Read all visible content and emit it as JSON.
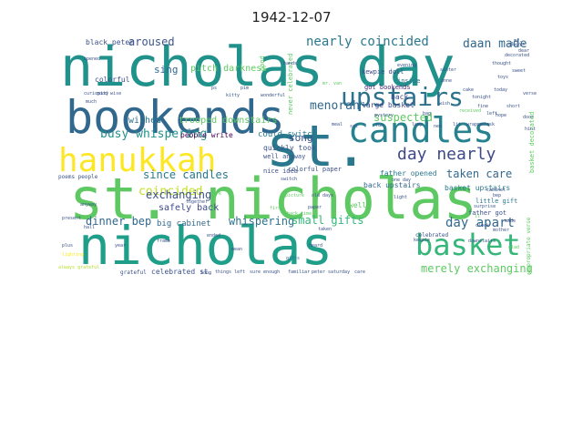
{
  "title": "1942-12-07",
  "colors": {
    "background": "#ffffff",
    "palette": [
      "#440154",
      "#3b528b",
      "#21918c",
      "#5ec962",
      "#fde725"
    ]
  },
  "words": [
    {
      "text": "nicholas day",
      "color": "#21918c"
    },
    {
      "text": "bookends",
      "color": "#31688e"
    },
    {
      "text": "st.",
      "color": "#2a788e"
    },
    {
      "text": "hanukkah",
      "color": "#fde725"
    },
    {
      "text": "candles",
      "color": "#26828e"
    },
    {
      "text": "upstairs",
      "color": "#2c728e"
    },
    {
      "text": "st. nicholas",
      "color": "#5ec962"
    },
    {
      "text": "nicholas",
      "color": "#1f9e89"
    },
    {
      "text": "basket",
      "color": "#35b779"
    },
    {
      "text": "nearly coincided",
      "color": "#2a788e"
    },
    {
      "text": "day nearly",
      "color": "#3e4989"
    },
    {
      "text": "daan made",
      "color": "#31688e"
    },
    {
      "text": "aroused",
      "color": "#3b528b"
    },
    {
      "text": "menorah",
      "color": "#31688e"
    },
    {
      "text": "suspected",
      "color": "#5ec962"
    },
    {
      "text": "busy whispering",
      "color": "#21918c"
    },
    {
      "text": "sing",
      "color": "#31688e"
    },
    {
      "text": "song",
      "color": "#3b528b"
    },
    {
      "text": "since candles",
      "color": "#2a788e"
    },
    {
      "text": "taken care",
      "color": "#31688e"
    },
    {
      "text": "coincided",
      "color": "#c2df23"
    },
    {
      "text": "exchanging",
      "color": "#3b528b"
    },
    {
      "text": "dinner bep",
      "color": "#31688e"
    },
    {
      "text": "whispering",
      "color": "#2c728e"
    },
    {
      "text": "small gifts",
      "color": "#35b779"
    },
    {
      "text": "day apart",
      "color": "#31688e"
    },
    {
      "text": "merely exchanging",
      "color": "#5ec962"
    },
    {
      "text": "pitch darkness",
      "color": "#5ec962"
    },
    {
      "text": "trooped downstairs",
      "color": "#5ec962"
    },
    {
      "text": "wished",
      "color": "#2c728e"
    },
    {
      "text": "colorful",
      "color": "#3b528b"
    },
    {
      "text": "black peter",
      "color": "#3b528b"
    },
    {
      "text": "kewpie doll",
      "color": "#3e4989"
    },
    {
      "text": "got bookends",
      "color": "#482878"
    },
    {
      "text": "large basket",
      "color": "#3e4989"
    },
    {
      "text": "could switch",
      "color": "#2a788e"
    },
    {
      "text": "quickly took",
      "color": "#3b528b"
    },
    {
      "text": "well anyway",
      "color": "#3b528b"
    },
    {
      "text": "people write",
      "color": "#440154"
    },
    {
      "text": "nice idea",
      "color": "#3b528b"
    },
    {
      "text": "colorful paper",
      "color": "#3b528b"
    },
    {
      "text": "father opened",
      "color": "#2a788e"
    },
    {
      "text": "back upstairs",
      "color": "#31688e"
    },
    {
      "text": "basket upstairs",
      "color": "#2a788e"
    },
    {
      "text": "little gift",
      "color": "#2a788e"
    },
    {
      "text": "father got",
      "color": "#3b528b"
    },
    {
      "text": "big cabinet",
      "color": "#31688e"
    },
    {
      "text": "safely back",
      "color": "#3e4989"
    },
    {
      "text": "celebrated st.",
      "color": "#3b528b"
    },
    {
      "text": "grateful",
      "color": "#3b528b"
    },
    {
      "text": "back",
      "color": "#3e4989"
    },
    {
      "text": "inside",
      "color": "#2a788e"
    },
    {
      "text": "good",
      "color": "#5ec962"
    },
    {
      "text": "never celebrated",
      "color": "#5ec962"
    },
    {
      "text": "basket decorated",
      "color": "#5ec962"
    },
    {
      "text": "poems people",
      "color": "#3b528b"
    },
    {
      "text": "always grateful",
      "color": "#b5de2b"
    },
    {
      "text": "celebrated",
      "color": "#3b528b"
    },
    {
      "text": "appropriate verse",
      "color": "#5ec962"
    },
    {
      "text": "verse",
      "color": "#3b528b"
    },
    {
      "text": "kewpie",
      "color": "#3b528b"
    },
    {
      "text": "gifts",
      "color": "#31688e"
    },
    {
      "text": "cabinet",
      "color": "#3b528b"
    },
    {
      "text": "old days",
      "color": "#3b528b"
    },
    {
      "text": "paper",
      "color": "#3b528b"
    },
    {
      "text": "light",
      "color": "#3b528b"
    },
    {
      "text": "well",
      "color": "#5ec962"
    },
    {
      "text": "bep",
      "color": "#3b528b"
    },
    {
      "text": "downstairs",
      "color": "#3b528b"
    },
    {
      "text": "one day",
      "color": "#3b528b"
    },
    {
      "text": "clock",
      "color": "#3b528b"
    },
    {
      "text": "made",
      "color": "#3b528b"
    },
    {
      "text": "mother",
      "color": "#3b528b"
    },
    {
      "text": "always",
      "color": "#3b528b"
    },
    {
      "text": "glad",
      "color": "#5ec962"
    },
    {
      "text": "ll",
      "color": "#5ec962"
    },
    {
      "text": "surprise",
      "color": "#3b528b"
    },
    {
      "text": "sure enough",
      "color": "#3b528b"
    },
    {
      "text": "familiar",
      "color": "#3b528b"
    },
    {
      "text": "peter",
      "color": "#3b528b"
    },
    {
      "text": "saturday",
      "color": "#3b528b"
    },
    {
      "text": "care",
      "color": "#3b528b"
    },
    {
      "text": "long",
      "color": "#3b528b"
    },
    {
      "text": "things left",
      "color": "#3b528b"
    },
    {
      "text": "hands",
      "color": "#3b528b"
    },
    {
      "text": "back time",
      "color": "#5ec962"
    },
    {
      "text": "picture",
      "color": "#5ec962"
    },
    {
      "text": "frame",
      "color": "#3b528b"
    },
    {
      "text": "plus",
      "color": "#3b528b"
    },
    {
      "text": "present",
      "color": "#3b528b"
    },
    {
      "text": "lighting",
      "color": "#fde725"
    },
    {
      "text": "hall",
      "color": "#3b528b"
    },
    {
      "text": "anyway",
      "color": "#3b528b"
    },
    {
      "text": "switch",
      "color": "#3b528b"
    },
    {
      "text": "mean",
      "color": "#3b528b"
    },
    {
      "text": "dark",
      "color": "#5ec962"
    },
    {
      "text": "together",
      "color": "#3b528b"
    },
    {
      "text": "ended",
      "color": "#3b528b"
    },
    {
      "text": "taken",
      "color": "#3b528b"
    },
    {
      "text": "heard",
      "color": "#3b528b"
    },
    {
      "text": "year",
      "color": "#3b528b"
    },
    {
      "text": "mr.",
      "color": "#3b528b"
    },
    {
      "text": "dear",
      "color": "#3b528b"
    },
    {
      "text": "thought",
      "color": "#3b528b"
    },
    {
      "text": "good wise",
      "color": "#3b528b"
    },
    {
      "text": "curiosity",
      "color": "#3b528b"
    },
    {
      "text": "opened",
      "color": "#3b528b"
    },
    {
      "text": "much",
      "color": "#3b528b"
    },
    {
      "text": "mr. van",
      "color": "#5ec962"
    },
    {
      "text": "wonderful",
      "color": "#3b528b"
    },
    {
      "text": "evening",
      "color": "#3b528b"
    },
    {
      "text": "sinter",
      "color": "#3b528b"
    },
    {
      "text": "first",
      "color": "#5ec962"
    },
    {
      "text": "wish",
      "color": "#3b528b"
    },
    {
      "text": "today",
      "color": "#3b528b"
    },
    {
      "text": "short",
      "color": "#3b528b"
    },
    {
      "text": "hope",
      "color": "#3b528b"
    },
    {
      "text": "mystery",
      "color": "#3b528b"
    },
    {
      "text": "decorated",
      "color": "#3b528b"
    },
    {
      "text": "received",
      "color": "#5ec962"
    },
    {
      "text": "left",
      "color": "#3b528b"
    },
    {
      "text": "lit",
      "color": "#3b528b"
    },
    {
      "text": "wrapped",
      "color": "#3b528b"
    },
    {
      "text": "ask",
      "color": "#3b528b"
    },
    {
      "text": "door",
      "color": "#3b528b"
    },
    {
      "text": "hint",
      "color": "#3b528b"
    },
    {
      "text": "sweet",
      "color": "#3b528b"
    },
    {
      "text": "toys",
      "color": "#3b528b"
    },
    {
      "text": "anne",
      "color": "#3b528b"
    },
    {
      "text": "cake",
      "color": "#3b528b"
    },
    {
      "text": "tonight",
      "color": "#3b528b"
    },
    {
      "text": "fine",
      "color": "#3b528b"
    },
    {
      "text": "bag",
      "color": "#3b528b"
    },
    {
      "text": "lamp",
      "color": "#3b528b"
    },
    {
      "text": "new",
      "color": "#3b528b"
    },
    {
      "text": "fun",
      "color": "#3b528b"
    },
    {
      "text": "sat",
      "color": "#3b528b"
    },
    {
      "text": "meal",
      "color": "#3b528b"
    },
    {
      "text": "pim",
      "color": "#3b528b"
    },
    {
      "text": "kitty",
      "color": "#3b528b"
    },
    {
      "text": "ps",
      "color": "#3b528b"
    }
  ]
}
